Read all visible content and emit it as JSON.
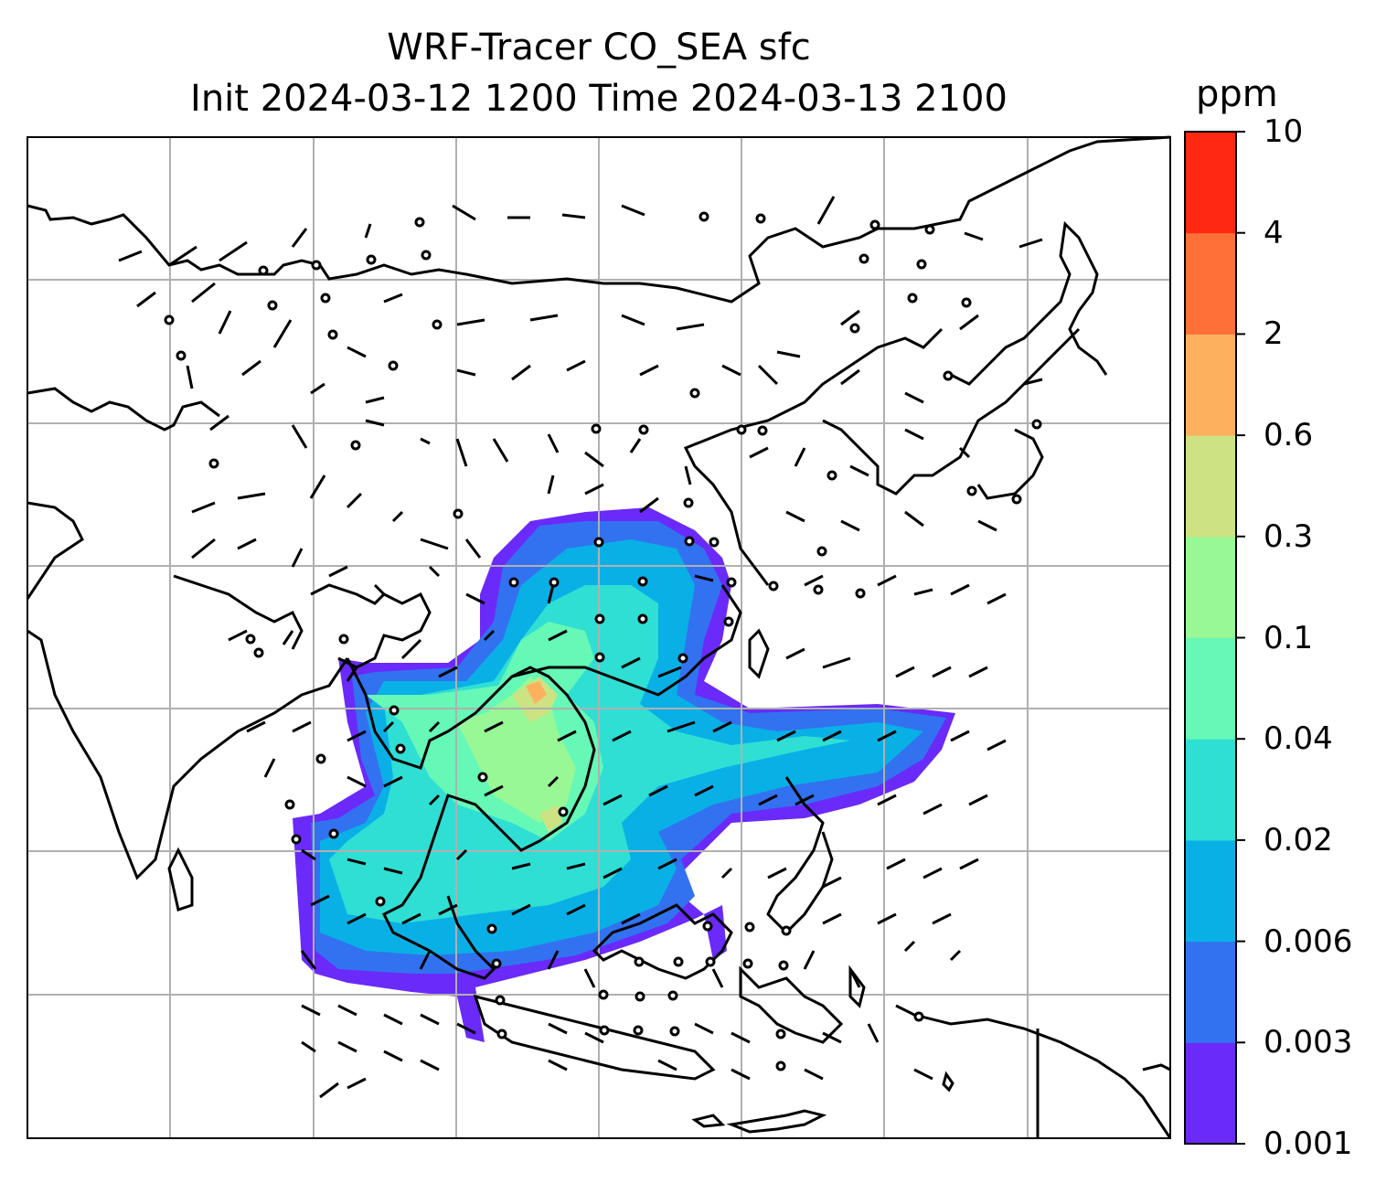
{
  "title": {
    "line1": "WRF-Tracer CO_SEA sfc",
    "line2": "Init 2024-03-12 1200 Time 2024-03-13 2100"
  },
  "colorbar": {
    "unit": "ppm",
    "ticks": [
      "0.001",
      "0.003",
      "0.006",
      "0.02",
      "0.04",
      "0.1",
      "0.3",
      "0.6",
      "2",
      "4",
      "10"
    ],
    "colors": [
      "#6a2af9",
      "#3272f0",
      "#09b0e6",
      "#2fdfd4",
      "#66f8b6",
      "#98f895",
      "#cde282",
      "#fdb15f",
      "#ff7038",
      "#ff2813"
    ]
  }
}
